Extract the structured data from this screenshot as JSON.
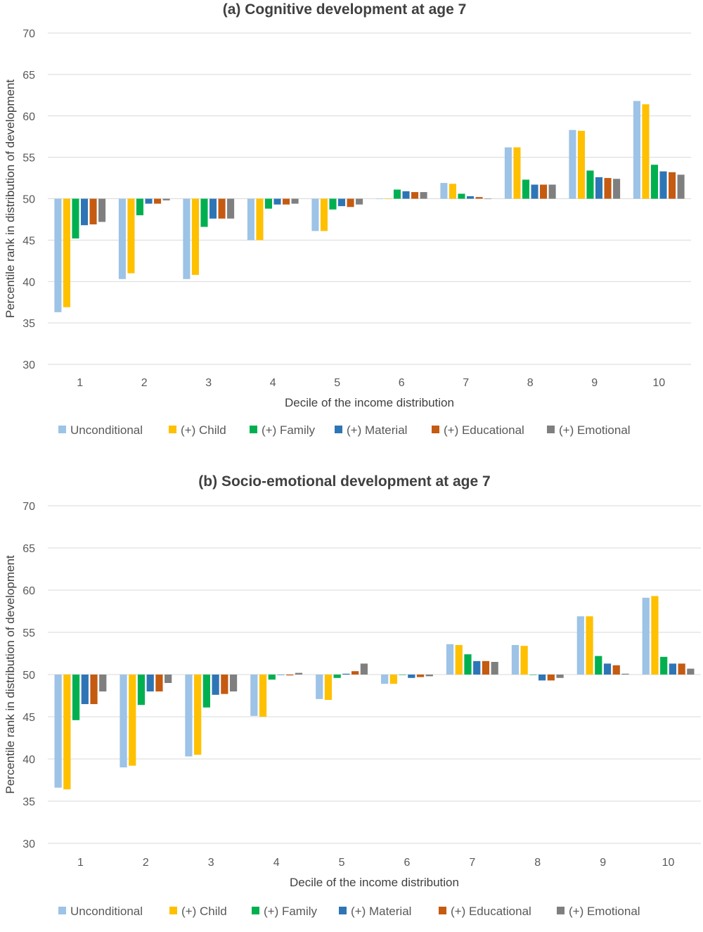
{
  "chart_data": [
    {
      "type": "bar",
      "title": "(a) Cognitive development at age 7",
      "xlabel": "Decile of the income distribution",
      "ylabel": "Percentile rank in distribution of development",
      "ylim": [
        30,
        70
      ],
      "baseline": 50,
      "yticks": [
        30,
        35,
        40,
        45,
        50,
        55,
        60,
        65,
        70
      ],
      "categories": [
        "1",
        "2",
        "3",
        "4",
        "5",
        "6",
        "7",
        "8",
        "9",
        "10"
      ],
      "grid": true,
      "legend_position": "bottom",
      "series": [
        {
          "name": "Unconditional",
          "color": "#9dc3e6",
          "values": [
            36.3,
            40.3,
            40.3,
            45.0,
            46.1,
            50.0,
            51.9,
            56.2,
            58.3,
            61.8
          ]
        },
        {
          "name": "(+) Child",
          "color": "#ffc000",
          "values": [
            36.9,
            41.0,
            40.8,
            45.0,
            46.1,
            50.0,
            51.8,
            56.2,
            58.2,
            61.4
          ]
        },
        {
          "name": "(+) Family",
          "color": "#00b050",
          "values": [
            45.2,
            48.0,
            46.6,
            48.8,
            48.7,
            51.1,
            50.6,
            52.3,
            53.4,
            54.1
          ]
        },
        {
          "name": "(+) Material",
          "color": "#2e75b6",
          "values": [
            46.8,
            49.4,
            47.6,
            49.3,
            49.1,
            50.9,
            50.3,
            51.7,
            52.6,
            53.3
          ]
        },
        {
          "name": "(+) Educational",
          "color": "#c55a11",
          "values": [
            46.9,
            49.4,
            47.6,
            49.3,
            49.0,
            50.8,
            50.2,
            51.7,
            52.5,
            53.2
          ]
        },
        {
          "name": "(+) Emotional",
          "color": "#7f7f7f",
          "values": [
            47.2,
            49.8,
            47.6,
            49.4,
            49.3,
            50.8,
            50.0,
            51.7,
            52.4,
            52.9
          ]
        }
      ]
    },
    {
      "type": "bar",
      "title": "(b) Socio-emotional development at age 7",
      "xlabel": "Decile of the income distribution",
      "ylabel": "Percentile rank in distribution of development",
      "ylim": [
        30,
        70
      ],
      "baseline": 50,
      "yticks": [
        30,
        35,
        40,
        45,
        50,
        55,
        60,
        65,
        70
      ],
      "categories": [
        "1",
        "2",
        "3",
        "4",
        "5",
        "6",
        "7",
        "8",
        "9",
        "10"
      ],
      "grid": true,
      "legend_position": "bottom",
      "series": [
        {
          "name": "Unconditional",
          "color": "#9dc3e6",
          "values": [
            36.6,
            39.0,
            40.3,
            45.1,
            47.1,
            48.9,
            53.6,
            53.5,
            56.9,
            59.1
          ]
        },
        {
          "name": "(+) Child",
          "color": "#ffc000",
          "values": [
            36.4,
            39.2,
            40.5,
            45.0,
            47.0,
            48.9,
            53.5,
            53.4,
            56.9,
            59.3
          ]
        },
        {
          "name": "(+) Family",
          "color": "#00b050",
          "values": [
            44.6,
            46.4,
            46.1,
            49.4,
            49.6,
            50.0,
            52.4,
            50.0,
            52.2,
            52.1
          ]
        },
        {
          "name": "(+) Material",
          "color": "#2e75b6",
          "values": [
            46.5,
            48.0,
            47.6,
            50.0,
            50.1,
            49.6,
            51.6,
            49.3,
            51.3,
            51.3
          ]
        },
        {
          "name": "(+) Educational",
          "color": "#c55a11",
          "values": [
            46.5,
            48.0,
            47.7,
            49.9,
            50.4,
            49.7,
            51.6,
            49.3,
            51.1,
            51.3
          ]
        },
        {
          "name": "(+) Emotional",
          "color": "#7f7f7f",
          "values": [
            48.0,
            49.0,
            48.0,
            50.2,
            51.3,
            49.8,
            51.5,
            49.6,
            50.1,
            50.7
          ]
        }
      ]
    }
  ]
}
